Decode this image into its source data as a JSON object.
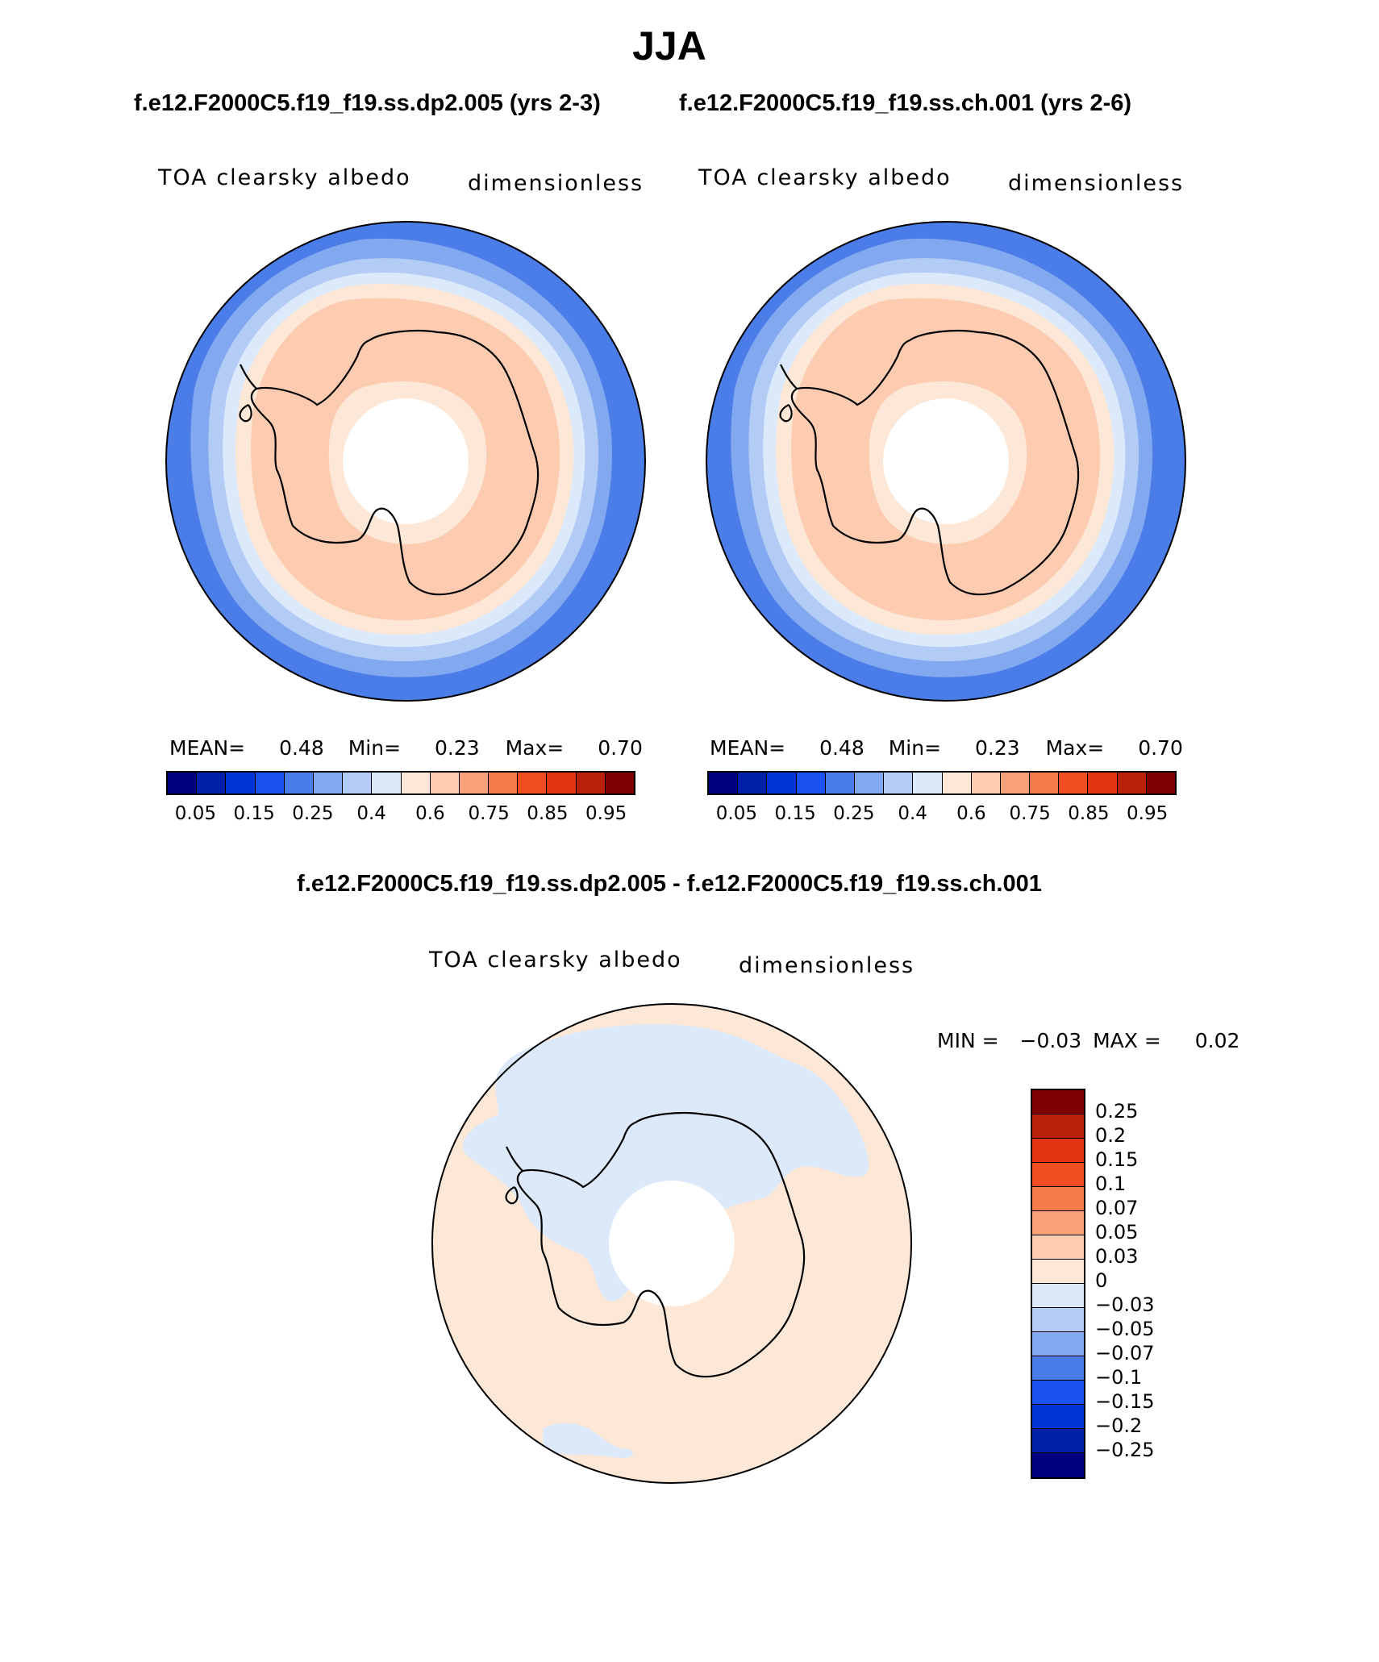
{
  "figure": {
    "season": "JJA",
    "case1_title": "f.e12.F2000C5.f19_f19.ss.dp2.005 (yrs 2-3)",
    "case2_title": "f.e12.F2000C5.f19_f19.ss.ch.001 (yrs 2-6)",
    "diff_title": "f.e12.F2000C5.f19_f19.ss.dp2.005 - f.e12.F2000C5.f19_f19.ss.ch.001"
  },
  "panels": [
    {
      "variable": "TOA clearsky albedo",
      "units": "dimensionless",
      "mean_label": "MEAN=",
      "mean": "0.48",
      "min_label": "Min=",
      "min": "0.23",
      "max_label": "Max=",
      "max": "0.70"
    },
    {
      "variable": "TOA clearsky albedo",
      "units": "dimensionless",
      "mean_label": "MEAN=",
      "mean": "0.48",
      "min_label": "Min=",
      "min": "0.23",
      "max_label": "Max=",
      "max": "0.70"
    }
  ],
  "diff_panel": {
    "variable": "TOA clearsky albedo",
    "units": "dimensionless",
    "min_label": "MIN =",
    "min": "−0.03",
    "max_label": "MAX =",
    "max": "0.02"
  },
  "colors": {
    "abs_scale": [
      "#00007f",
      "#0020a8",
      "#0034d8",
      "#1a52f0",
      "#4a7de8",
      "#82a8f0",
      "#b2ccf6",
      "#dbe9fb",
      "#fde7d6",
      "#fccbb0",
      "#f8a07a",
      "#f67a4a",
      "#f04e22",
      "#e03510",
      "#b82008",
      "#7f0000"
    ],
    "diff_scale": [
      "#7f0000",
      "#b82008",
      "#e03510",
      "#f04e22",
      "#f67a4a",
      "#f8a07a",
      "#fccbb0",
      "#fde7d6",
      "#dbe9fb",
      "#b2ccf6",
      "#82a8f0",
      "#4a7de8",
      "#1a52f0",
      "#0034d8",
      "#0020a8",
      "#00007f"
    ],
    "land_outline": "#000000"
  },
  "colorbar_abs": {
    "ticks": [
      "0.05",
      "0.15",
      "0.25",
      "0.4",
      "0.6",
      "0.75",
      "0.85",
      "0.95"
    ]
  },
  "colorbar_diff": {
    "ticks": [
      "0.25",
      "0.2",
      "0.15",
      "0.1",
      "0.07",
      "0.05",
      "0.03",
      "0",
      "−0.03",
      "−0.05",
      "−0.07",
      "−0.1",
      "−0.15",
      "−0.2",
      "−0.25"
    ]
  }
}
